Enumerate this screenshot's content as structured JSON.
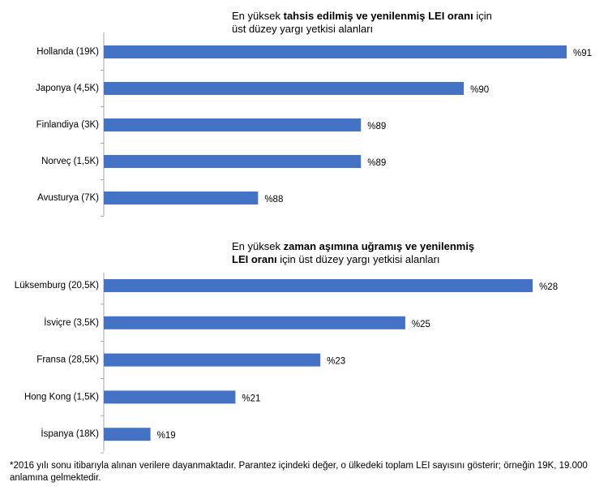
{
  "chart_data": [
    {
      "type": "bar",
      "orientation": "horizontal",
      "title": [
        [
          {
            "text": "En yüksek",
            "bold": false
          },
          {
            "text": "tahsis edilmiş ve yenilenmiş LEI oranı",
            "bold": true
          },
          {
            "text": "için",
            "bold": false
          }
        ],
        [
          {
            "text": "üst düzey yargı yetkisi alanları",
            "bold": false
          }
        ]
      ],
      "categories": [
        "Hollanda (19K)",
        "Japonya (4,5K)",
        "Finlandiya (3K)",
        "Norveç (1,5K)",
        "Avusturya (7K)"
      ],
      "values": [
        91,
        90,
        89,
        89,
        88
      ],
      "value_labels": [
        "%91",
        "%90",
        "%89",
        "%89",
        "%88"
      ],
      "color": "#4472c4",
      "xlim": [
        86.5,
        91
      ]
    },
    {
      "type": "bar",
      "orientation": "horizontal",
      "title": [
        [
          {
            "text": "En yüksek",
            "bold": false
          },
          {
            "text": "zaman aşımına uğramış ve yenilenmiş",
            "bold": true
          }
        ],
        [
          {
            "text": "LEI oranı",
            "bold": true
          },
          {
            "text": "için üst düzey yargı yetkisi alanları",
            "bold": false
          }
        ]
      ],
      "categories": [
        "Lüksemburg (20,5K)",
        "İsviçre (3,5K)",
        "Fransa (28,5K)",
        "Hong Kong (1,5K)",
        "İspanya (18K)"
      ],
      "values": [
        28,
        25,
        23,
        21,
        19
      ],
      "value_labels": [
        "%28",
        "%25",
        "%23",
        "%21",
        "%19"
      ],
      "color": "#4472c4",
      "xlim": [
        17.9,
        28.8
      ]
    }
  ],
  "footnote": "*2016 yılı sonu itibarıyla alınan verilere dayanmaktadır. Parantez içindeki değer, o ülkedeki toplam LEI sayısını gösterir; örneğin 19K, 19.000 anlamına gelmektedir."
}
